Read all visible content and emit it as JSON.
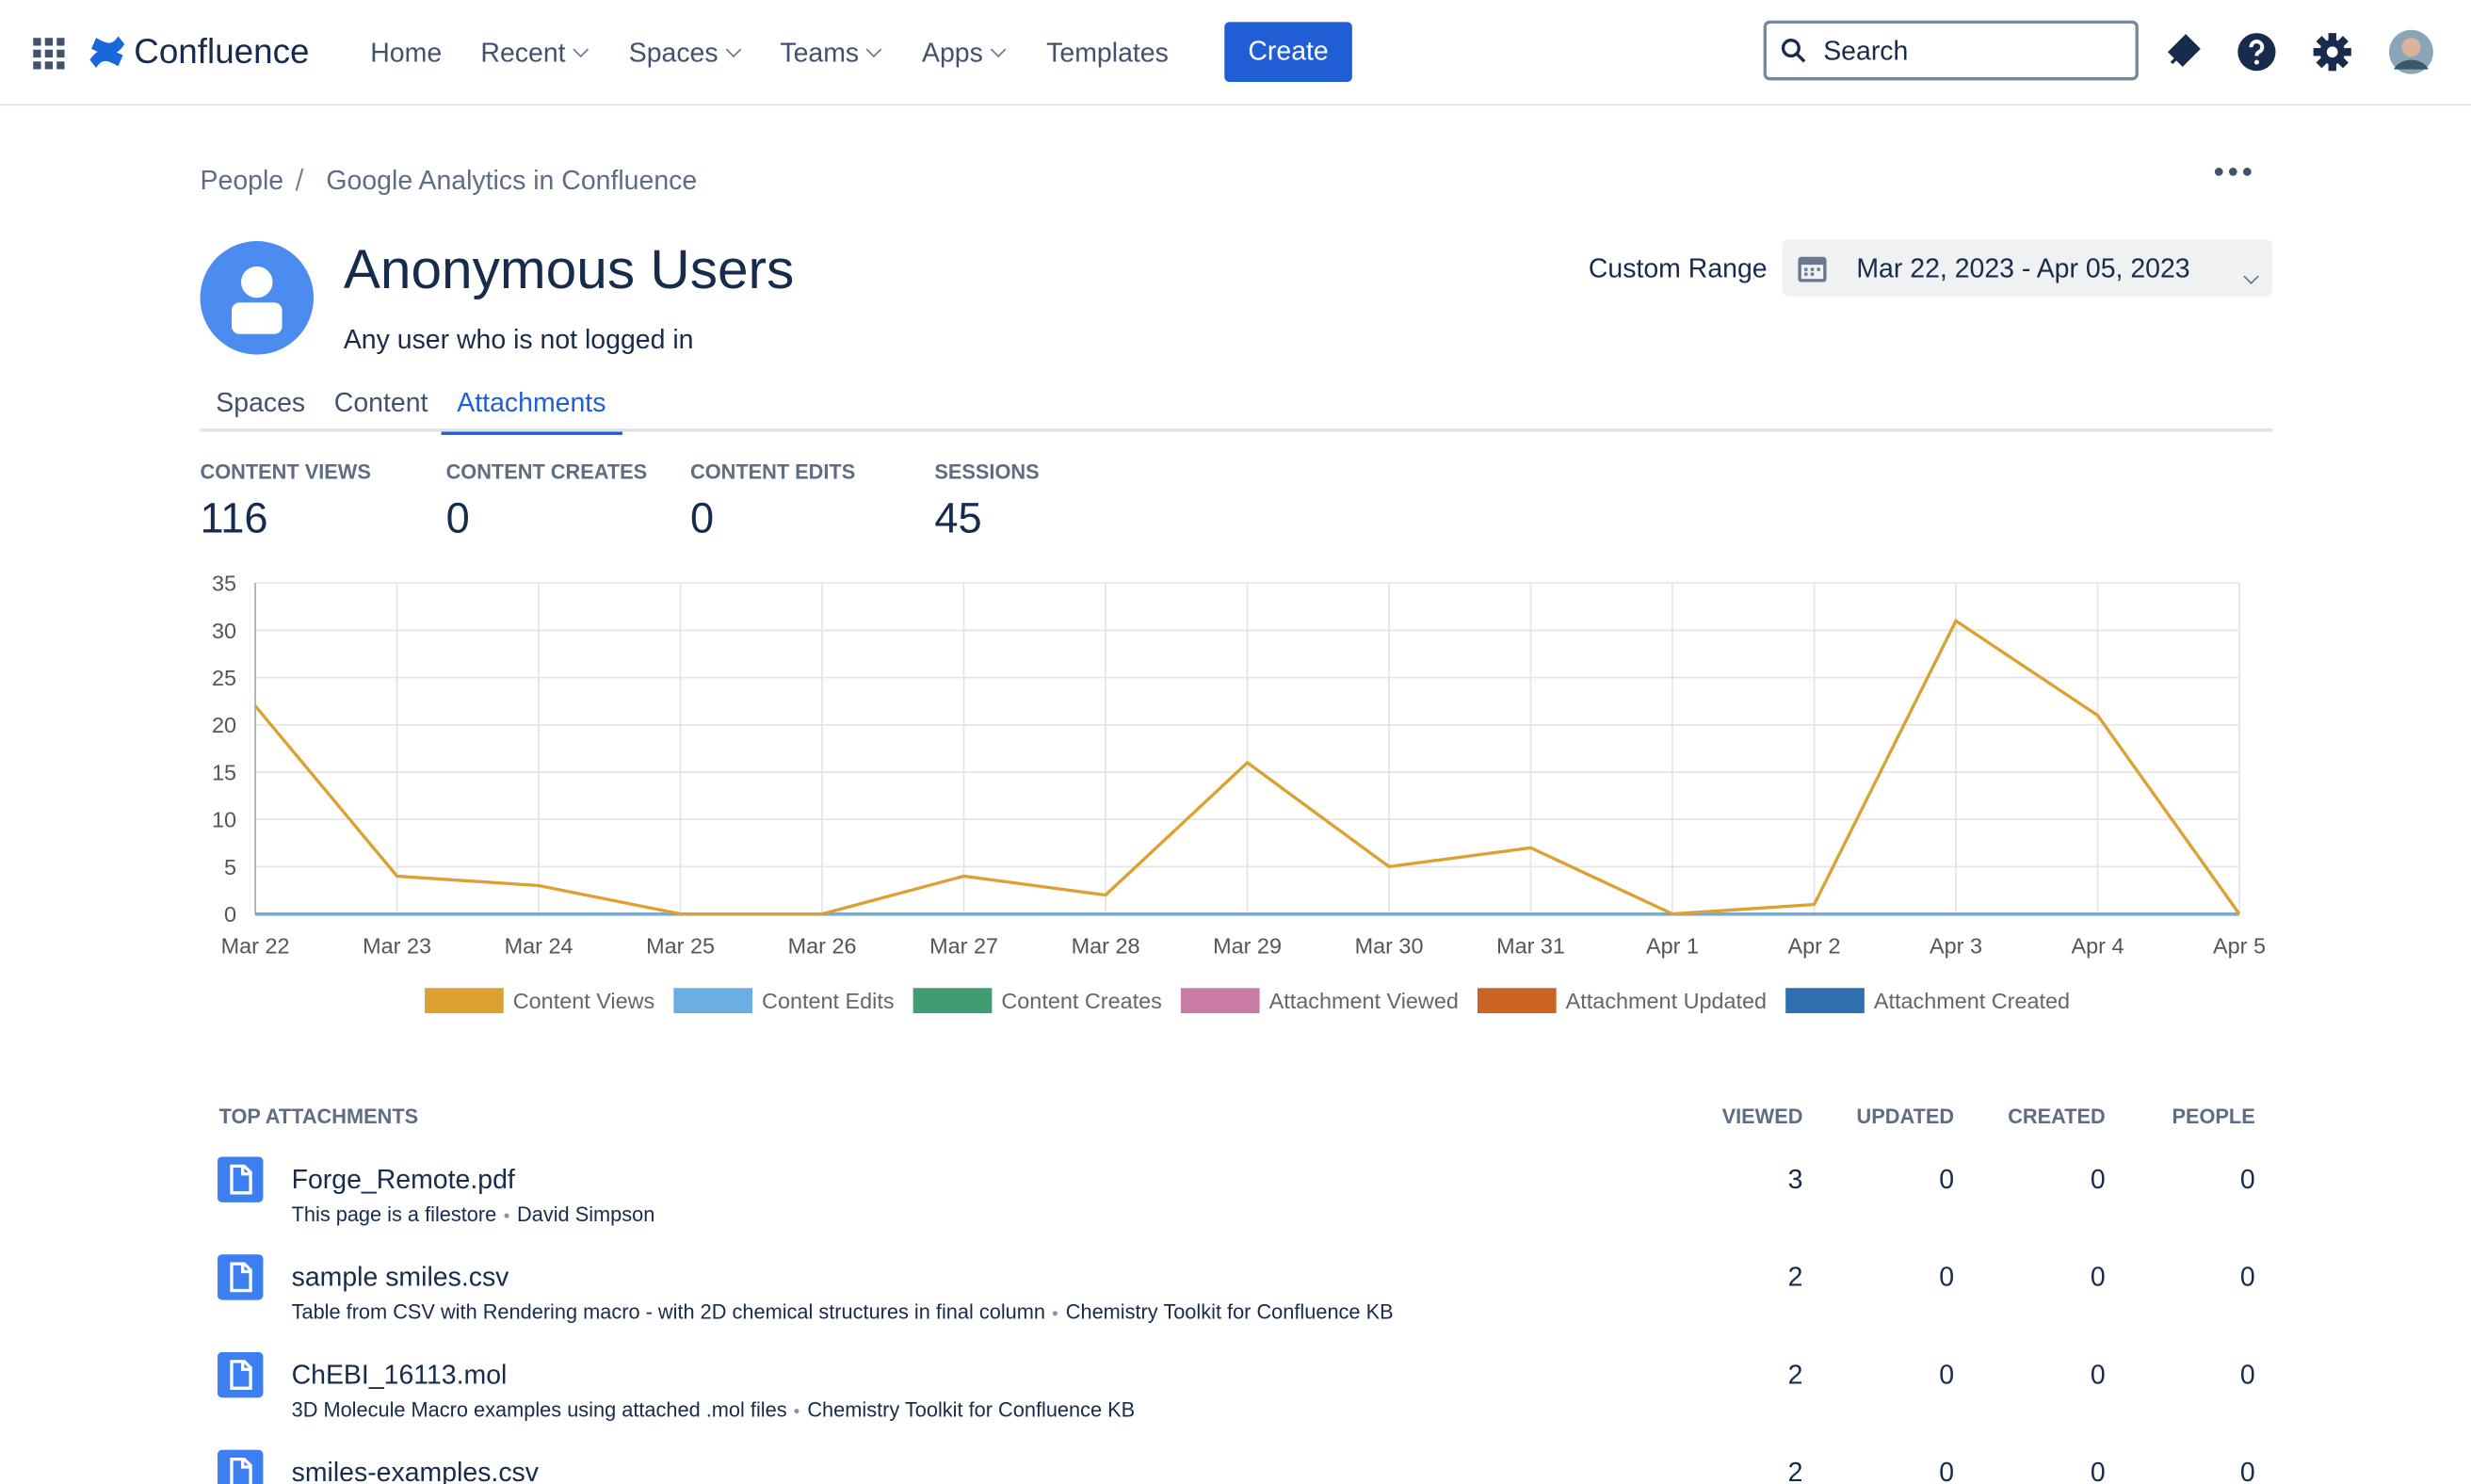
{
  "nav": {
    "brand": "Confluence",
    "items": [
      "Home",
      "Recent",
      "Spaces",
      "Teams",
      "Apps",
      "Templates"
    ],
    "create": "Create",
    "search": "Search"
  },
  "breadcrumb": [
    "People",
    "Google Analytics in Confluence"
  ],
  "header": {
    "title": "Anonymous Users",
    "subtitle": "Any user who is not logged in",
    "range_label": "Custom Range",
    "range": "Mar 22, 2023 - Apr 05, 2023"
  },
  "tabs": [
    "Spaces",
    "Content",
    "Attachments"
  ],
  "stats": [
    {
      "label": "CONTENT VIEWS",
      "value": 116
    },
    {
      "label": "CONTENT CREATES",
      "value": 0
    },
    {
      "label": "CONTENT EDITS",
      "value": 0
    },
    {
      "label": "SESSIONS",
      "value": 45
    }
  ],
  "chart_data": {
    "type": "line",
    "categories": [
      "Mar 22",
      "Mar 23",
      "Mar 24",
      "Mar 25",
      "Mar 26",
      "Mar 27",
      "Mar 28",
      "Mar 29",
      "Mar 30",
      "Mar 31",
      "Apr 1",
      "Apr 2",
      "Apr 3",
      "Apr 4",
      "Apr 5"
    ],
    "series": [
      {
        "name": "Content Views",
        "color": "#dda033",
        "values": [
          22,
          4,
          3,
          0,
          0,
          4,
          2,
          16,
          5,
          7,
          0,
          1,
          31,
          21,
          0
        ]
      },
      {
        "name": "Content Edits",
        "color": "#6aaee3",
        "values": [
          0,
          0,
          0,
          0,
          0,
          0,
          0,
          0,
          0,
          0,
          0,
          0,
          0,
          0,
          0
        ]
      },
      {
        "name": "Content Creates",
        "color": "#3f9c73",
        "values": [
          0,
          0,
          0,
          0,
          0,
          0,
          0,
          0,
          0,
          0,
          0,
          0,
          0,
          0,
          0
        ]
      },
      {
        "name": "Attachment Viewed",
        "color": "#c97ba6",
        "values": [
          0,
          0,
          0,
          0,
          0,
          0,
          0,
          0,
          0,
          0,
          0,
          0,
          0,
          0,
          0
        ]
      },
      {
        "name": "Attachment Updated",
        "color": "#cc6426",
        "values": [
          0,
          0,
          0,
          0,
          0,
          0,
          0,
          0,
          0,
          0,
          0,
          0,
          0,
          0,
          0
        ]
      },
      {
        "name": "Attachment Created",
        "color": "#2f6fb0",
        "values": [
          0,
          0,
          0,
          0,
          0,
          0,
          0,
          0,
          0,
          0,
          0,
          0,
          0,
          0,
          0
        ]
      }
    ],
    "ylim": [
      0,
      35
    ],
    "yticks": [
      0,
      5,
      10,
      15,
      20,
      25,
      30,
      35
    ],
    "grid": true
  },
  "table": {
    "title": "TOP ATTACHMENTS",
    "columns": [
      "VIEWED",
      "UPDATED",
      "CREATED",
      "PEOPLE"
    ],
    "rows": [
      {
        "name": "Forge_Remote.pdf",
        "description": "This page is a filestore",
        "space": "David Simpson",
        "values": [
          3,
          0,
          0,
          0
        ]
      },
      {
        "name": "sample smiles.csv",
        "description": "Table from CSV with Rendering macro - with 2D chemical structures in final column",
        "space": "Chemistry Toolkit for Confluence KB",
        "values": [
          2,
          0,
          0,
          0
        ]
      },
      {
        "name": "ChEBI_16113.mol",
        "description": "3D Molecule Macro examples using attached .mol files",
        "space": "Chemistry Toolkit for Confluence KB",
        "values": [
          2,
          0,
          0,
          0
        ]
      },
      {
        "name": "smiles-examples.csv",
        "description": "",
        "space": "",
        "values": [
          2,
          0,
          0,
          0
        ]
      }
    ]
  }
}
